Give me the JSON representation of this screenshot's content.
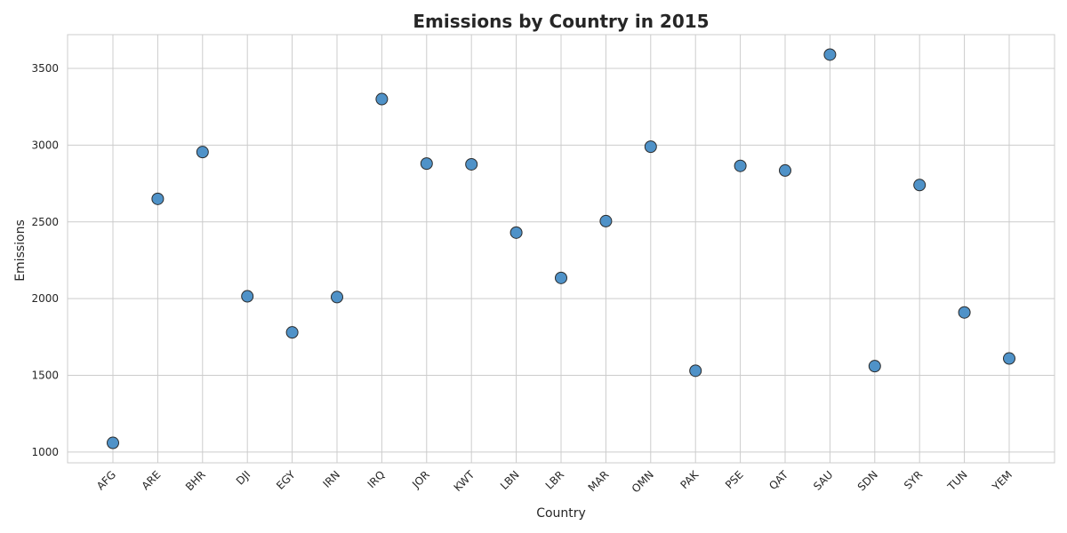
{
  "chart_data": {
    "type": "scatter",
    "title": "Emissions by Country in 2015",
    "xlabel": "Country",
    "ylabel": "Emissions",
    "categories": [
      "AFG",
      "ARE",
      "BHR",
      "DJI",
      "EGY",
      "IRN",
      "IRQ",
      "JOR",
      "KWT",
      "LBN",
      "LBR",
      "MAR",
      "OMN",
      "PAK",
      "PSE",
      "QAT",
      "SAU",
      "SDN",
      "SYR",
      "TUN",
      "YEM"
    ],
    "values": [
      1060,
      2650,
      2955,
      2015,
      1780,
      2010,
      3300,
      2880,
      2875,
      2430,
      2135,
      2505,
      2990,
      1530,
      2865,
      2835,
      3590,
      1560,
      2740,
      1910,
      1610
    ],
    "yticks": [
      1000,
      1500,
      2000,
      2500,
      3000,
      3500
    ],
    "ylim": [
      930,
      3720
    ],
    "grid": true,
    "marker_color": "#4f92c8",
    "marker_edge_color": "#2b2b2b"
  }
}
